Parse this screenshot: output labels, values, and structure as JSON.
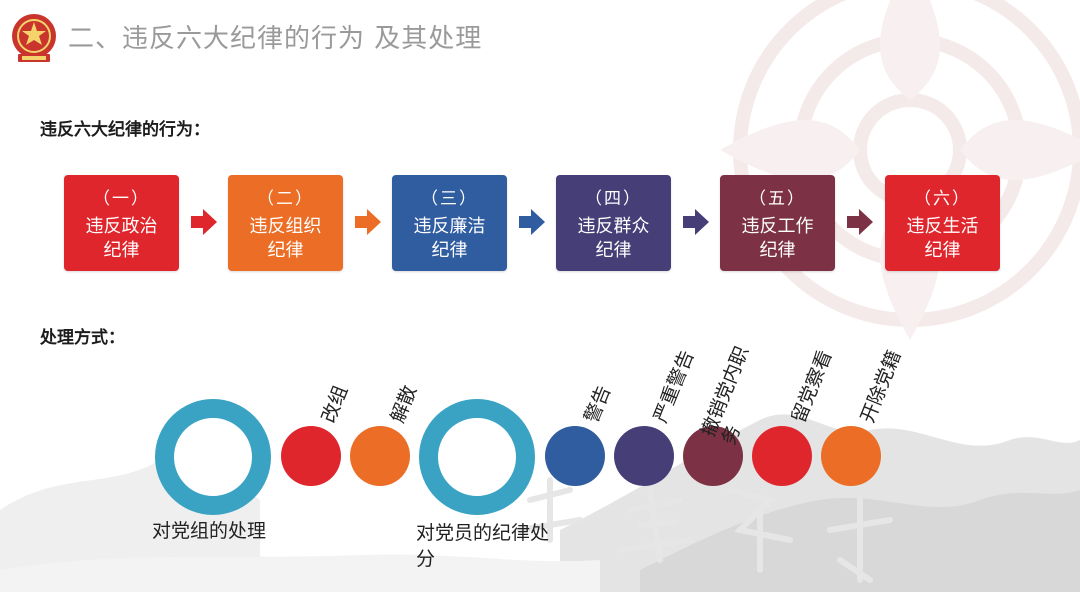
{
  "title": "二、违反六大纪律的行为 及其处理",
  "violations_heading": "违反六大纪律的行为：",
  "handling_heading": "处理方式：",
  "violations": [
    {
      "num": "（一）",
      "name": "违反政治纪律",
      "color": "#e0262d"
    },
    {
      "num": "（二）",
      "name": "违反组织纪律",
      "color": "#ec6d25"
    },
    {
      "num": "（三）",
      "name": "违反廉洁纪律",
      "color": "#305ca0"
    },
    {
      "num": "（四）",
      "name": "违反群众纪律",
      "color": "#453e77"
    },
    {
      "num": "（五）",
      "name": "违反工作纪律",
      "color": "#7c3244"
    },
    {
      "num": "（六）",
      "name": "违反生活纪律",
      "color": "#e0262d"
    }
  ],
  "arrow_colors": [
    "#e0262d",
    "#ec6d25",
    "#305ca0",
    "#453e77",
    "#7c3244"
  ],
  "handling": {
    "party_org": {
      "label": "对党组的处理",
      "ring_color": "#3aa3c3",
      "measures": [
        {
          "label": "改组",
          "color": "#e0262d"
        },
        {
          "label": "解散",
          "color": "#ec6d25"
        }
      ]
    },
    "party_member": {
      "label": "对党员的纪律处分",
      "ring_color": "#3aa3c3",
      "measures": [
        {
          "label": "警告",
          "color": "#305ca0"
        },
        {
          "label": "严重警告",
          "color": "#453e77"
        },
        {
          "label": "撤销党内职务",
          "color": "#7c3244"
        },
        {
          "label": "留党察看",
          "color": "#e0262d"
        },
        {
          "label": "开除党籍",
          "color": "#ec6d25"
        }
      ]
    }
  }
}
